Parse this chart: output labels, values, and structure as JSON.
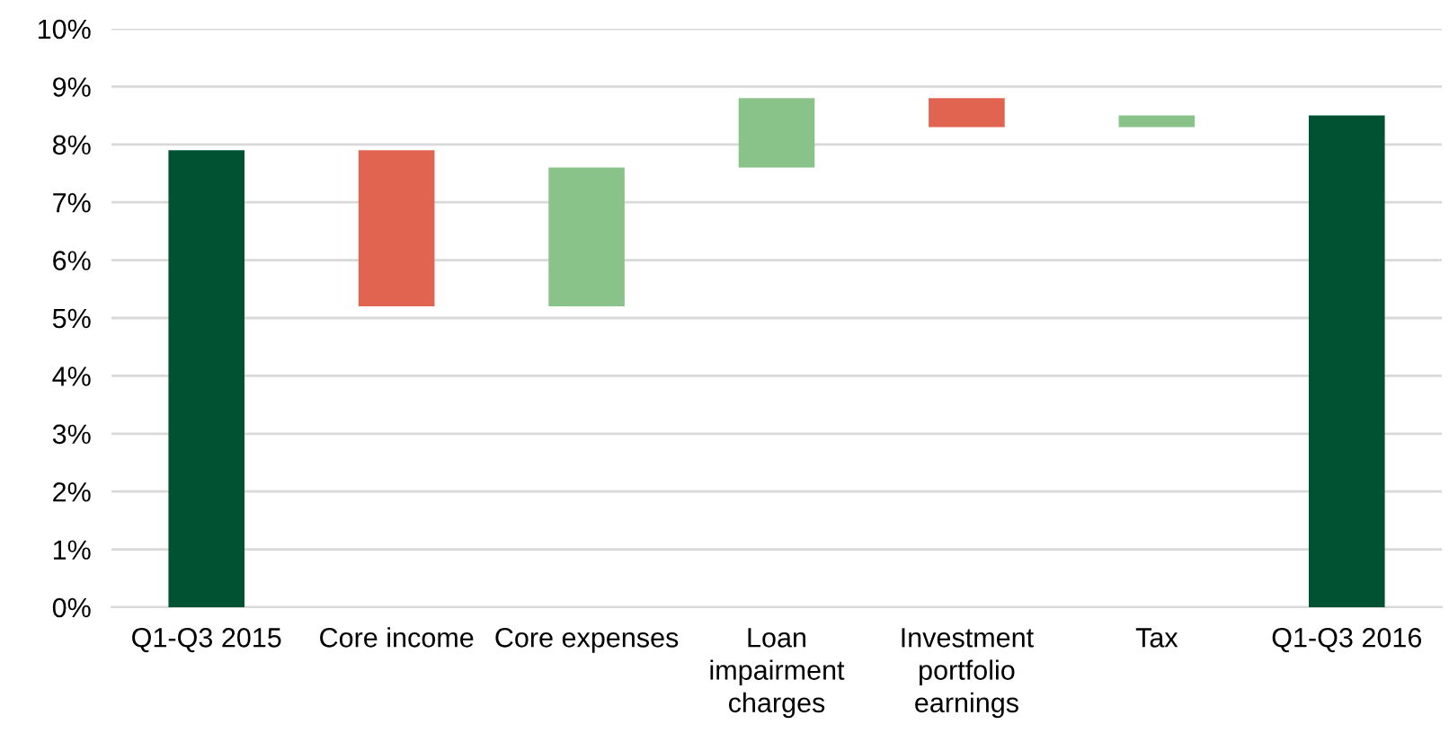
{
  "chart_data": {
    "type": "bar",
    "categories": [
      "Q1-Q3 2015",
      "Core income",
      "Core expenses",
      "Loan\nimpairment\ncharges",
      "Investment\nportfolio\nearnings",
      "Tax",
      "Q1-Q3 2016"
    ],
    "values": [
      7.9,
      2.7,
      2.4,
      1.2,
      0.5,
      0.2,
      8.5
    ],
    "base": [
      0,
      5.2,
      5.2,
      7.6,
      8.3,
      8.3,
      0
    ],
    "colors": [
      "#005232",
      "#e0644f",
      "#8ac38a",
      "#8ac38a",
      "#e0644f",
      "#8ac38a",
      "#005232"
    ],
    "ylim": [
      0,
      10
    ],
    "yticks": [
      {
        "value": 0,
        "label": "0%"
      },
      {
        "value": 1,
        "label": "1%"
      },
      {
        "value": 2,
        "label": "2%"
      },
      {
        "value": 3,
        "label": "3%"
      },
      {
        "value": 4,
        "label": "4%"
      },
      {
        "value": 5,
        "label": "5%"
      },
      {
        "value": 6,
        "label": "6%"
      },
      {
        "value": 7,
        "label": "7%"
      },
      {
        "value": 8,
        "label": "8%"
      },
      {
        "value": 9,
        "label": "9%"
      },
      {
        "value": 10,
        "label": "10%"
      }
    ],
    "grid": "y",
    "legend": false
  }
}
